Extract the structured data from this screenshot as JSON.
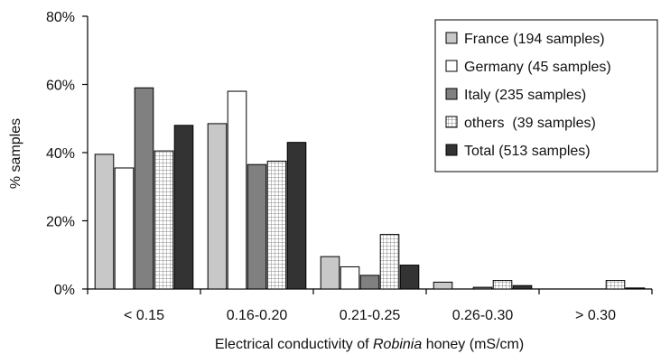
{
  "chart_data": {
    "type": "bar",
    "title": "",
    "xlabel_parts": [
      "Electrical conductivity of ",
      "Robinia",
      " honey (mS/cm)"
    ],
    "ylabel": "% samples",
    "categories": [
      "< 0.15",
      "0.16-0.20",
      "0.21-0.25",
      "0.26-0.30",
      "> 0.30"
    ],
    "ylim": [
      0,
      80
    ],
    "yticks": [
      "0%",
      "20%",
      "40%",
      "60%",
      "80%"
    ],
    "grid": false,
    "legend_position": "top-right",
    "series": [
      {
        "name": "France (194 samples)",
        "fill": "#c8c8c8",
        "pattern": "solid",
        "values": [
          39.5,
          48.5,
          9.5,
          2.0,
          0.0
        ]
      },
      {
        "name": "Germany (45 samples)",
        "fill": "#ffffff",
        "pattern": "solid",
        "values": [
          35.5,
          58.0,
          6.5,
          0.0,
          0.0
        ]
      },
      {
        "name": "Italy (235 samples)",
        "fill": "#808080",
        "pattern": "solid",
        "values": [
          59.0,
          36.5,
          4.0,
          0.5,
          0.0
        ]
      },
      {
        "name": "others  (39 samples)",
        "fill": "#e0e0e0",
        "pattern": "grid",
        "values": [
          40.5,
          37.5,
          16.0,
          2.5,
          2.5
        ]
      },
      {
        "name": "Total (513 samples)",
        "fill": "#333333",
        "pattern": "solid",
        "values": [
          48.0,
          43.0,
          7.0,
          1.0,
          0.3
        ]
      }
    ]
  }
}
